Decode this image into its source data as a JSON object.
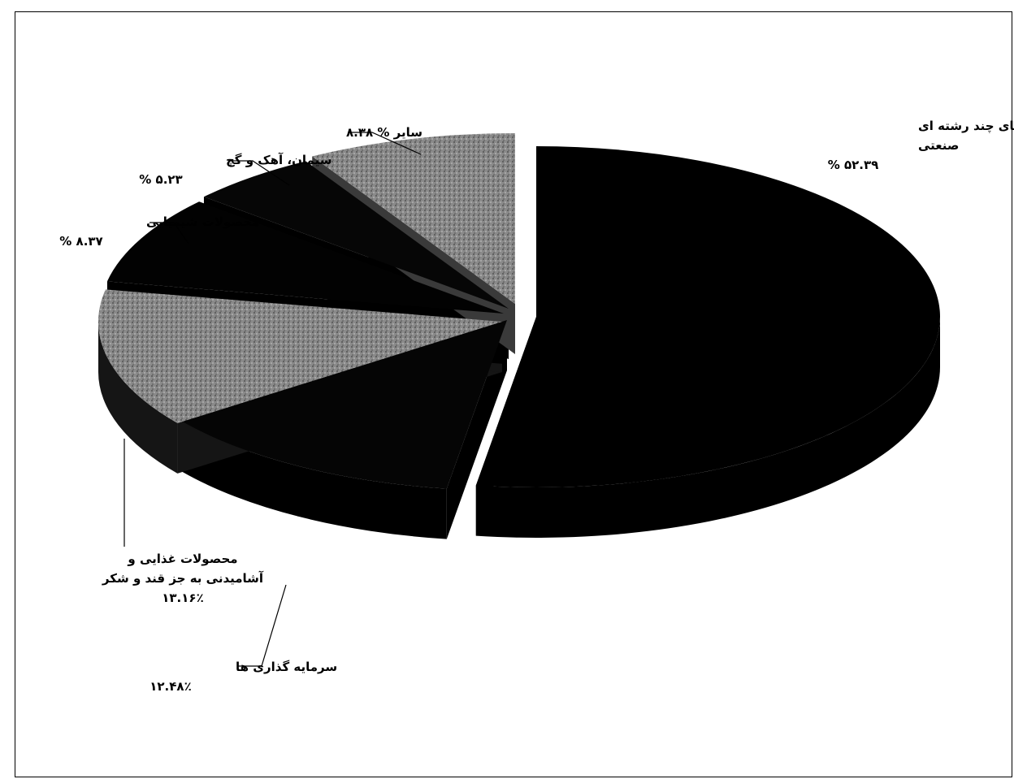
{
  "chart_data": {
    "type": "pie",
    "title": "",
    "style": "3d-exploded",
    "slices": [
      {
        "name": "شرکتهای چند رشته ای صنعتی",
        "label_lines": [
          "شرکتهای چند رشته ای",
          "صنعتی"
        ],
        "value_text": "۵۲.۳۹ %",
        "value": 52.39,
        "color": "#000000"
      },
      {
        "name": "سرمایه گذاری ها",
        "label_lines": [
          "سرمایه گذاری ها"
        ],
        "value_text": "۱۲.۴۸٪",
        "value": 12.48,
        "color": "#0a0a0a"
      },
      {
        "name": "محصولات غذایی و آشامیدنی به جز قند و شکر",
        "label_lines": [
          "محصولات غذایی و",
          "آشامیدنی به جز قند و شکر"
        ],
        "value_text": "۱۳.۱۶٪",
        "value": 13.16,
        "color": "#1e1e1e"
      },
      {
        "name": "محصولات شیمیایی",
        "label_lines": [
          "محصولات شیمیایی"
        ],
        "value_text": "۸.۳۷ %",
        "value": 8.37,
        "color": "#050505"
      },
      {
        "name": "سیمان، آهک و گچ",
        "label_lines": [
          "سیمان، آهک و گچ"
        ],
        "value_text": "۵.۲۳ %",
        "value": 5.23,
        "color": "#080808"
      },
      {
        "name": "سایر",
        "label_lines": [
          "سایر"
        ],
        "value_text": "۸.۳۸ %",
        "value": 8.38,
        "color": "#7a7a7a",
        "inline_label": "سایر % ۸.۳۸"
      }
    ]
  }
}
